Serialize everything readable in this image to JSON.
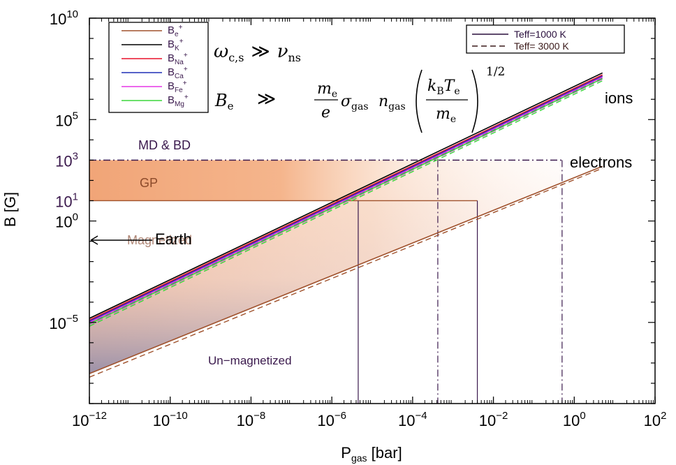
{
  "chart_data": {
    "type": "line",
    "xlabel": "P",
    "xlabel_sub": "gas",
    "xlabel_unit": " [bar]",
    "ylabel": "B [G]",
    "x_scale": "log",
    "y_scale": "log",
    "xlim": [
      1e-12,
      100
    ],
    "ylim": [
      1e-09,
      10000000000.0
    ],
    "x_ticks": [
      {
        "value": 1e-12,
        "base": "10",
        "exp": "−12"
      },
      {
        "value": 1e-10,
        "base": "10",
        "exp": "−10"
      },
      {
        "value": 1e-08,
        "base": "10",
        "exp": "−8"
      },
      {
        "value": 1e-06,
        "base": "10",
        "exp": "−6"
      },
      {
        "value": 0.0001,
        "base": "10",
        "exp": "−4"
      },
      {
        "value": 0.01,
        "base": "10",
        "exp": "−2"
      },
      {
        "value": 1,
        "base": "10",
        "exp": "0"
      },
      {
        "value": 100,
        "base": "10",
        "exp": "2"
      }
    ],
    "y_ticks": [
      {
        "value": 1e-05,
        "base": "10",
        "exp": "−5",
        "color": "#000000"
      },
      {
        "value": 1,
        "base": "10",
        "exp": "0",
        "color": "#000000"
      },
      {
        "value": 10,
        "base": "10",
        "exp": "1",
        "color": "#3b1a4d"
      },
      {
        "value": 1000,
        "base": "10",
        "exp": "3",
        "color": "#3b1a4d"
      },
      {
        "value": 100000.0,
        "base": "10",
        "exp": "5",
        "color": "#000000"
      },
      {
        "value": 10000000000.0,
        "base": "10",
        "exp": "10",
        "color": "#000000"
      }
    ],
    "series": [
      {
        "name": "B_e+",
        "label_main": "B",
        "label_sub": "e",
        "label_sup": "+",
        "color": "#a0522d",
        "x": [
          1e-12,
          5
        ],
        "y": [
          3e-08,
          500
        ],
        "dashed_y": [
          2e-08,
          400
        ]
      },
      {
        "name": "B_K+",
        "label_main": "B",
        "label_sub": "K",
        "label_sup": "+",
        "color": "#000000",
        "x": [
          1e-12,
          5
        ],
        "y": [
          1.6e-05,
          20000000.0
        ],
        "dashed_y": [
          1.2e-05,
          16000000.0
        ]
      },
      {
        "name": "B_Na+",
        "label_main": "B",
        "label_sub": "Na",
        "label_sup": "+",
        "color": "#e8102a",
        "x": [
          1e-12,
          5
        ],
        "y": [
          1.3e-05,
          16000000.0
        ],
        "dashed_y": [
          1e-05,
          12500000.0
        ]
      },
      {
        "name": "B_Ca+",
        "label_main": "B",
        "label_sub": "Ca",
        "label_sup": "+",
        "color": "#1f2fb5",
        "x": [
          1e-12,
          5
        ],
        "y": [
          1.15e-05,
          14000000.0
        ],
        "dashed_y": [
          9e-06,
          11000000.0
        ]
      },
      {
        "name": "B_Fe+",
        "label_main": "B",
        "label_sub": "Fe",
        "label_sup": "+",
        "color": "#e636e6",
        "x": [
          1e-12,
          5
        ],
        "y": [
          1e-05,
          12500000.0
        ],
        "dashed_y": [
          7.8e-06,
          9800000.0
        ]
      },
      {
        "name": "B_Mg+",
        "label_main": "B",
        "label_sub": "Mg",
        "label_sup": "+",
        "color": "#3ad63a",
        "x": [
          1e-12,
          5
        ],
        "y": [
          8.5e-06,
          10500000.0
        ],
        "dashed_y": [
          6.5e-06,
          8200000.0
        ]
      }
    ],
    "line_style_legend": [
      {
        "label": "Teff=1000 K",
        "style": "solid",
        "color": "#2a0f3d"
      },
      {
        "label": "Teff= 3000 K",
        "style": "dashed",
        "color": "#3b1a1a"
      }
    ],
    "reference_levels": [
      {
        "label": "MD & BD",
        "y": 1000,
        "x_end": 0.5,
        "style": "dash-dot",
        "color": "#3b1a4d"
      },
      {
        "label": "GP",
        "y": 10,
        "x_end": 0.004,
        "style": "solid",
        "color": "#a0522d"
      }
    ],
    "vertical_markers": [
      {
        "x": 4.5e-06,
        "y_top": 10,
        "style": "solid"
      },
      {
        "x": 0.00042,
        "y_top": 1000,
        "style": "dash-dot"
      },
      {
        "x": 0.004,
        "y_top": 10,
        "style": "solid"
      },
      {
        "x": 0.5,
        "y_top": 1000,
        "style": "dash-dot"
      }
    ],
    "annotations": [
      {
        "text": "ions",
        "x": 2.5,
        "y": 100000.0
      },
      {
        "text": "electrons",
        "x": 0.6,
        "y": 500
      },
      {
        "text": "Magnetized",
        "x": 1.5e-11,
        "y": 0.08
      },
      {
        "text": "Un−magnetized",
        "x": 2e-09,
        "y": 4e-07
      },
      {
        "text": "Earth",
        "x": 5e-11,
        "y": 0.15
      }
    ],
    "earth_field_y": 0.05,
    "equations": {
      "eq1_lhs": "ω",
      "eq1_lhs_sub": "c,s",
      "eq1_op": "≫",
      "eq1_rhs": "ν",
      "eq1_rhs_sub": "ns",
      "eq2_lhs": "B",
      "eq2_lhs_sub": "e",
      "eq2_op": "≫",
      "eq2_frac_num": "m",
      "eq2_frac_num_sub": "e",
      "eq2_frac_den": "e",
      "eq2_sigma": "σ",
      "eq2_sigma_sub": "gas",
      "eq2_n": "n",
      "eq2_n_sub": "gas",
      "eq2_inner_num_k": "k",
      "eq2_inner_num_k_sub": "B",
      "eq2_inner_num_t": "T",
      "eq2_inner_num_t_sub": "e",
      "eq2_inner_den": "m",
      "eq2_inner_den_sub": "e",
      "eq2_power": "1/2"
    }
  }
}
